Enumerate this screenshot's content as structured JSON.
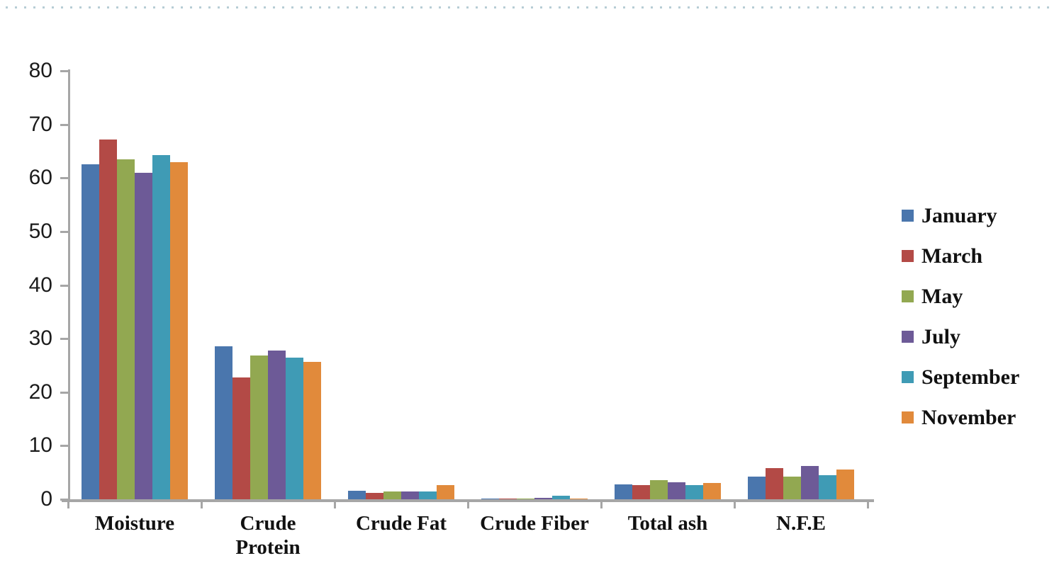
{
  "page": {
    "background": "#ffffff",
    "top_border_color": "#b7cdd5"
  },
  "chart_data": {
    "type": "bar",
    "title": "",
    "categories": [
      "Moisture",
      "Crude\nProtein",
      "Crude Fat",
      "Crude Fiber",
      "Total ash",
      "N.F.E"
    ],
    "series": [
      {
        "name": "January",
        "color": "#4a76ad",
        "values": [
          62.5,
          28.5,
          1.6,
          0.1,
          2.8,
          4.2
        ]
      },
      {
        "name": "March",
        "color": "#b34a46",
        "values": [
          67.2,
          22.8,
          1.2,
          0.1,
          2.6,
          5.8
        ]
      },
      {
        "name": "May",
        "color": "#92a851",
        "values": [
          63.5,
          26.8,
          1.4,
          0.1,
          3.6,
          4.2
        ]
      },
      {
        "name": "July",
        "color": "#6d5a97",
        "values": [
          60.9,
          27.8,
          1.5,
          0.3,
          3.2,
          6.2
        ]
      },
      {
        "name": "September",
        "color": "#3f9bb5",
        "values": [
          64.2,
          26.5,
          1.5,
          0.6,
          2.6,
          4.5
        ]
      },
      {
        "name": "November",
        "color": "#e18a3b",
        "values": [
          62.9,
          25.7,
          2.6,
          0.1,
          3.1,
          5.5
        ]
      }
    ],
    "y_axis": {
      "min": 0,
      "max": 80,
      "step": 10,
      "tick_labels": [
        "0",
        "10",
        "20",
        "30",
        "40",
        "50",
        "60",
        "70",
        "80"
      ]
    },
    "x_axis": {
      "tick_count": 7
    },
    "legend": {
      "position": "right"
    },
    "grid": false,
    "axis_color": "#a6a6a6",
    "text_color": "#1c1c1c"
  }
}
